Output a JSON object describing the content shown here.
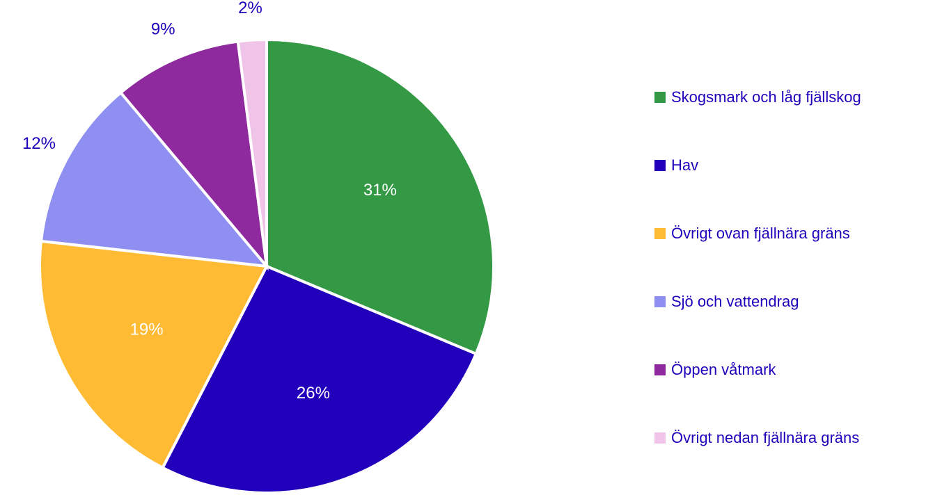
{
  "chart_data": {
    "type": "pie",
    "categories": [
      "Skogsmark och låg fjällskog",
      "Hav",
      "Övrigt ovan fjällnära gräns",
      "Sjö och vattendrag",
      "Öppen våtmark",
      "Övrigt nedan fjällnära gräns"
    ],
    "values": [
      31,
      26,
      19,
      12,
      9,
      2
    ],
    "value_labels": [
      "31%",
      "26%",
      "19%",
      "12%",
      "9%",
      "2%"
    ],
    "colors": [
      "#339944",
      "#2200bb",
      "#ffbb33",
      "#8f8ff2",
      "#8e2a9e",
      "#f0c4e8"
    ],
    "legend": "right"
  }
}
